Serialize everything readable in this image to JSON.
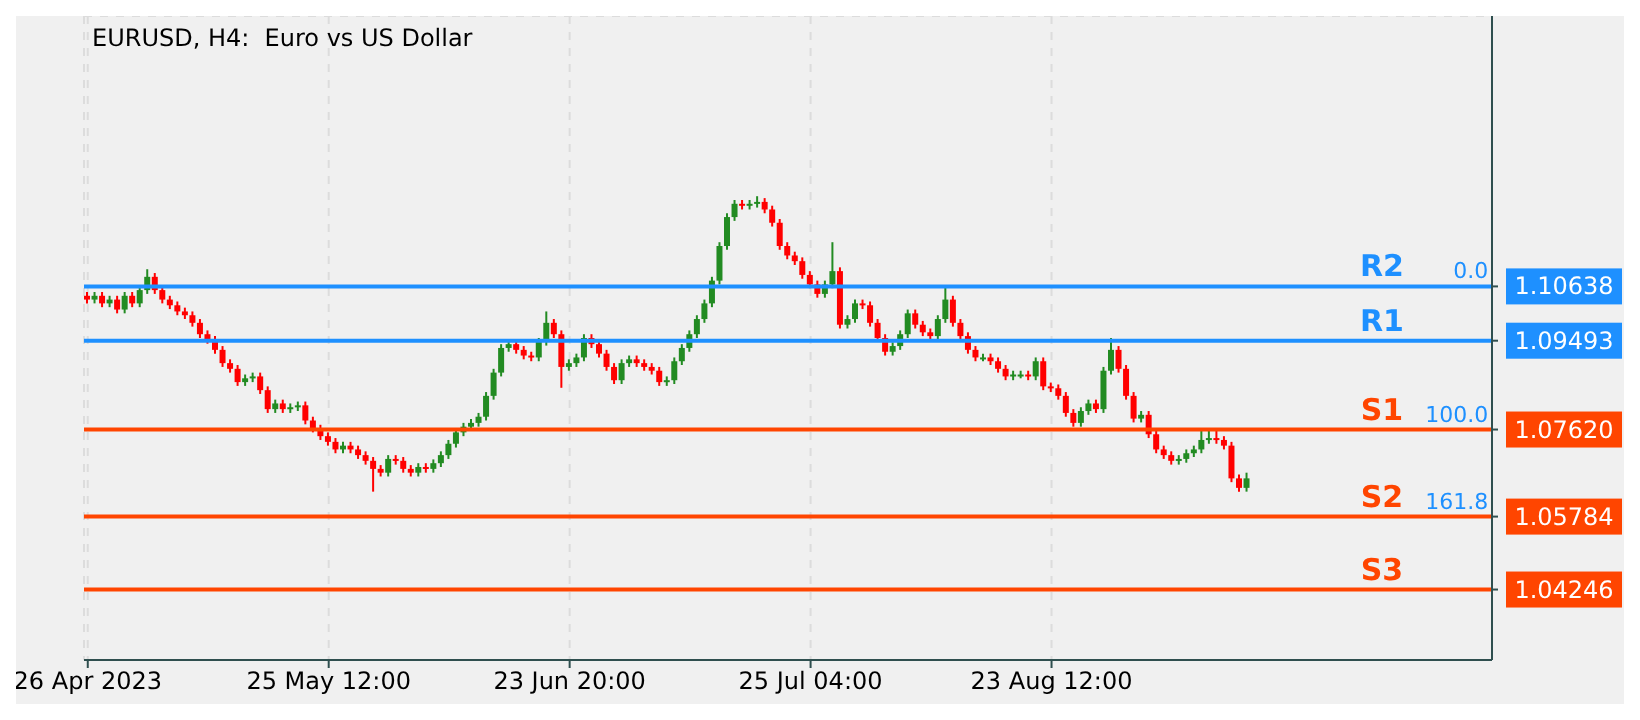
{
  "chart_data": {
    "type": "candlestick",
    "title": "EURUSD, H4:  Euro vs US Dollar",
    "categories": [
      "26 Apr 2023",
      null,
      null,
      null,
      null,
      null,
      null,
      null,
      null,
      null,
      null,
      null,
      null,
      null,
      null,
      null,
      null,
      null,
      null,
      null,
      null,
      null,
      null,
      null,
      null,
      null,
      null,
      null,
      null,
      null,
      null,
      null,
      "25 May 12:00",
      null,
      null,
      null,
      null,
      null,
      null,
      null,
      null,
      null,
      null,
      null,
      null,
      null,
      null,
      null,
      null,
      null,
      null,
      null,
      null,
      null,
      null,
      null,
      null,
      null,
      null,
      null,
      null,
      null,
      null,
      null,
      "23 Jun 20:00",
      null,
      null,
      null,
      null,
      null,
      null,
      null,
      null,
      null,
      null,
      null,
      null,
      null,
      null,
      null,
      null,
      null,
      null,
      null,
      null,
      null,
      null,
      null,
      null,
      null,
      null,
      null,
      null,
      null,
      null,
      null,
      "25 Jul 04:00",
      null,
      null,
      null,
      null,
      null,
      null,
      null,
      null,
      null,
      null,
      null,
      null,
      null,
      null,
      null,
      null,
      null,
      null,
      null,
      null,
      null,
      null,
      null,
      null,
      null,
      null,
      null,
      null,
      null,
      null,
      null,
      "23 Aug 12:00",
      null,
      null,
      null,
      null,
      null,
      null,
      null,
      null,
      null,
      null,
      null,
      null,
      null,
      null,
      null,
      null,
      null,
      null,
      null,
      null,
      null,
      null,
      null,
      null,
      null,
      null,
      null,
      null,
      null,
      null,
      null,
      null,
      null,
      null,
      null,
      null,
      null,
      null,
      null,
      null,
      null,
      null,
      null,
      null,
      null,
      null,
      null,
      null,
      null,
      null,
      null,
      null,
      null,
      null,
      null,
      null,
      null,
      null
    ],
    "ohlc": [
      [
        1.1044,
        1.1052,
        1.1028,
        1.1036
      ],
      [
        1.1036,
        1.1052,
        1.1028,
        1.1044
      ],
      [
        1.1044,
        1.1052,
        1.102,
        1.1028
      ],
      [
        1.1028,
        1.1044,
        1.102,
        1.1036
      ],
      [
        1.1036,
        1.1044,
        1.1007,
        1.1015
      ],
      [
        1.1015,
        1.1052,
        1.1007,
        1.1044
      ],
      [
        1.1044,
        1.1052,
        1.102,
        1.1028
      ],
      [
        1.1028,
        1.1064,
        1.102,
        1.1056
      ],
      [
        1.1056,
        1.11,
        1.1048,
        1.1084
      ],
      [
        1.1084,
        1.1092,
        1.1048,
        1.1056
      ],
      [
        1.1056,
        1.1064,
        1.1028,
        1.1036
      ],
      [
        1.1036,
        1.1044,
        1.1016,
        1.1024
      ],
      [
        1.1024,
        1.1032,
        1.1003,
        1.1011
      ],
      [
        1.1011,
        1.1019,
        1.0995,
        1.1003
      ],
      [
        1.1003,
        1.1011,
        1.0979,
        1.0987
      ],
      [
        1.0987,
        1.0995,
        1.0955,
        1.0963
      ],
      [
        1.0963,
        1.0971,
        1.0943,
        1.0951
      ],
      [
        1.0951,
        1.0959,
        1.0922,
        1.093
      ],
      [
        1.093,
        1.0938,
        1.0894,
        1.0902
      ],
      [
        1.0902,
        1.091,
        1.0882,
        1.089
      ],
      [
        1.089,
        1.0898,
        1.0854,
        1.0862
      ],
      [
        1.0862,
        1.0878,
        1.0854,
        1.087
      ],
      [
        1.087,
        1.0882,
        1.0862,
        1.0874
      ],
      [
        1.0874,
        1.0882,
        1.0837,
        1.0845
      ],
      [
        1.0845,
        1.0853,
        1.0797,
        1.0805
      ],
      [
        1.0805,
        1.0825,
        1.0797,
        1.0817
      ],
      [
        1.0817,
        1.0825,
        1.0797,
        1.0805
      ],
      [
        1.0805,
        1.0817,
        1.0797,
        1.0809
      ],
      [
        1.0809,
        1.0821,
        1.0801,
        1.0813
      ],
      [
        1.0813,
        1.0821,
        1.0773,
        1.0781
      ],
      [
        1.0781,
        1.0789,
        1.0756,
        1.0764
      ],
      [
        1.0764,
        1.0772,
        1.074,
        1.0748
      ],
      [
        1.0748,
        1.0756,
        1.0728,
        1.0736
      ],
      [
        1.0736,
        1.0744,
        1.0712,
        1.072
      ],
      [
        1.072,
        1.0736,
        1.0712,
        1.0728
      ],
      [
        1.0728,
        1.0736,
        1.0712,
        1.072
      ],
      [
        1.072,
        1.0728,
        1.07,
        1.0708
      ],
      [
        1.0708,
        1.0716,
        1.0688,
        1.0696
      ],
      [
        1.0696,
        1.0704,
        1.0631,
        1.0679
      ],
      [
        1.0679,
        1.0687,
        1.0663,
        1.0671
      ],
      [
        1.0671,
        1.0708,
        1.0663,
        1.07
      ],
      [
        1.07,
        1.0708,
        1.0688,
        1.0696
      ],
      [
        1.0696,
        1.0704,
        1.0671,
        1.0679
      ],
      [
        1.0679,
        1.0687,
        1.0663,
        1.0671
      ],
      [
        1.0671,
        1.0691,
        1.0663,
        1.0683
      ],
      [
        1.0683,
        1.0691,
        1.0671,
        1.0679
      ],
      [
        1.0679,
        1.0699,
        1.0671,
        1.0691
      ],
      [
        1.0691,
        1.0716,
        1.0683,
        1.0708
      ],
      [
        1.0708,
        1.074,
        1.07,
        1.0732
      ],
      [
        1.0732,
        1.0764,
        1.0724,
        1.0756
      ],
      [
        1.0756,
        1.0776,
        1.0748,
        1.0768
      ],
      [
        1.0768,
        1.0784,
        1.076,
        1.0776
      ],
      [
        1.0776,
        1.0797,
        1.0768,
        1.0789
      ],
      [
        1.0789,
        1.0841,
        1.0781,
        1.0833
      ],
      [
        1.0833,
        1.089,
        1.0825,
        1.0882
      ],
      [
        1.0882,
        1.0942,
        1.0874,
        1.0934
      ],
      [
        1.0934,
        1.095,
        1.0926,
        1.0942
      ],
      [
        1.0942,
        1.095,
        1.0922,
        1.093
      ],
      [
        1.093,
        1.0938,
        1.091,
        1.0918
      ],
      [
        1.0918,
        1.0926,
        1.0906,
        1.0914
      ],
      [
        1.0914,
        1.0955,
        1.0906,
        1.0947
      ],
      [
        1.0947,
        1.1011,
        1.0939,
        1.0987
      ],
      [
        1.0987,
        1.0995,
        1.0955,
        1.0963
      ],
      [
        1.0963,
        1.0971,
        1.085,
        1.0894
      ],
      [
        1.0894,
        1.091,
        1.0886,
        1.0902
      ],
      [
        1.0902,
        1.0922,
        1.0894,
        1.0914
      ],
      [
        1.0914,
        1.0963,
        1.0906,
        1.0955
      ],
      [
        1.0955,
        1.0963,
        1.0934,
        1.0942
      ],
      [
        1.0942,
        1.095,
        1.0914,
        1.0922
      ],
      [
        1.0922,
        1.093,
        1.0886,
        1.0894
      ],
      [
        1.0894,
        1.0902,
        1.0858,
        1.0866
      ],
      [
        1.0866,
        1.091,
        1.0858,
        1.0902
      ],
      [
        1.0902,
        1.0918,
        1.0894,
        1.091
      ],
      [
        1.091,
        1.0918,
        1.0894,
        1.0902
      ],
      [
        1.0902,
        1.091,
        1.0886,
        1.0894
      ],
      [
        1.0894,
        1.0902,
        1.0878,
        1.0886
      ],
      [
        1.0886,
        1.0894,
        1.0854,
        1.0862
      ],
      [
        1.0862,
        1.0874,
        1.0854,
        1.0866
      ],
      [
        1.0866,
        1.0914,
        1.0858,
        1.0906
      ],
      [
        1.0906,
        1.0942,
        1.0898,
        1.0934
      ],
      [
        1.0934,
        1.0971,
        1.0926,
        1.0963
      ],
      [
        1.0963,
        1.1003,
        1.0955,
        1.0995
      ],
      [
        1.0995,
        1.1036,
        1.0987,
        1.1028
      ],
      [
        1.1028,
        1.1084,
        1.102,
        1.1076
      ],
      [
        1.1076,
        1.1157,
        1.1068,
        1.1149
      ],
      [
        1.1149,
        1.1218,
        1.1141,
        1.121
      ],
      [
        1.121,
        1.1246,
        1.1202,
        1.1238
      ],
      [
        1.1238,
        1.1246,
        1.1226,
        1.1234
      ],
      [
        1.1234,
        1.1246,
        1.1226,
        1.1238
      ],
      [
        1.1238,
        1.1254,
        1.123,
        1.1242
      ],
      [
        1.1242,
        1.125,
        1.1218,
        1.1226
      ],
      [
        1.1226,
        1.1234,
        1.119,
        1.1198
      ],
      [
        1.1198,
        1.1206,
        1.1141,
        1.1149
      ],
      [
        1.1149,
        1.1157,
        1.1121,
        1.1129
      ],
      [
        1.1129,
        1.1137,
        1.1109,
        1.1117
      ],
      [
        1.1117,
        1.1125,
        1.108,
        1.1088
      ],
      [
        1.1088,
        1.1096,
        1.106,
        1.1068
      ],
      [
        1.1068,
        1.1076,
        1.104,
        1.1048
      ],
      [
        1.1048,
        1.1076,
        1.104,
        1.1068
      ],
      [
        1.1068,
        1.1157,
        1.106,
        1.1096
      ],
      [
        1.1096,
        1.1104,
        1.0975,
        1.0983
      ],
      [
        1.0983,
        1.1003,
        1.0975,
        1.0995
      ],
      [
        1.0995,
        1.1036,
        1.0987,
        1.1028
      ],
      [
        1.1028,
        1.1036,
        1.1016,
        1.1024
      ],
      [
        1.1024,
        1.1032,
        1.0979,
        1.0987
      ],
      [
        1.0987,
        1.0995,
        1.0947,
        1.0955
      ],
      [
        1.0955,
        1.0963,
        1.0918,
        1.0926
      ],
      [
        1.0926,
        1.0946,
        1.0918,
        1.0938
      ],
      [
        1.0938,
        1.0971,
        1.093,
        1.0963
      ],
      [
        1.0963,
        1.1015,
        1.0955,
        1.1007
      ],
      [
        1.1007,
        1.1015,
        1.0975,
        1.0983
      ],
      [
        1.0983,
        1.0991,
        1.0959,
        1.0967
      ],
      [
        1.0967,
        1.0975,
        1.0951,
        1.0959
      ],
      [
        1.0959,
        1.1003,
        1.0951,
        1.0995
      ],
      [
        1.0995,
        1.1064,
        1.0987,
        1.1036
      ],
      [
        1.1036,
        1.1044,
        1.0979,
        1.0987
      ],
      [
        1.0987,
        1.0995,
        1.0951,
        1.0959
      ],
      [
        1.0959,
        1.0967,
        1.0922,
        1.093
      ],
      [
        1.093,
        1.0938,
        1.0906,
        1.0914
      ],
      [
        1.0914,
        1.0922,
        1.0906,
        1.0914
      ],
      [
        1.0914,
        1.0922,
        1.0898,
        1.0906
      ],
      [
        1.0906,
        1.0914,
        1.0882,
        1.089
      ],
      [
        1.089,
        1.0898,
        1.0866,
        1.0874
      ],
      [
        1.0874,
        1.0886,
        1.0866,
        1.0878
      ],
      [
        1.0878,
        1.0886,
        1.087,
        1.0878
      ],
      [
        1.0878,
        1.0886,
        1.0866,
        1.0874
      ],
      [
        1.0874,
        1.0914,
        1.0866,
        1.0906
      ],
      [
        1.0906,
        1.0914,
        1.0845,
        1.0853
      ],
      [
        1.0853,
        1.0861,
        1.0841,
        1.0849
      ],
      [
        1.0849,
        1.0857,
        1.0825,
        1.0833
      ],
      [
        1.0833,
        1.0841,
        1.0789,
        1.0797
      ],
      [
        1.0797,
        1.0805,
        1.0768,
        1.0776
      ],
      [
        1.0776,
        1.0809,
        1.0768,
        1.0801
      ],
      [
        1.0801,
        1.0825,
        1.0793,
        1.0817
      ],
      [
        1.0817,
        1.0825,
        1.0797,
        1.0805
      ],
      [
        1.0805,
        1.0894,
        1.0797,
        1.0886
      ],
      [
        1.0886,
        1.0955,
        1.0878,
        1.093
      ],
      [
        1.093,
        1.0938,
        1.0882,
        1.089
      ],
      [
        1.089,
        1.0898,
        1.0825,
        1.0833
      ],
      [
        1.0833,
        1.0841,
        1.0777,
        1.0785
      ],
      [
        1.0785,
        1.0801,
        1.0777,
        1.0793
      ],
      [
        1.0793,
        1.0801,
        1.0744,
        1.0752
      ],
      [
        1.0752,
        1.076,
        1.0712,
        1.072
      ],
      [
        1.072,
        1.0728,
        1.07,
        1.0708
      ],
      [
        1.0708,
        1.0716,
        1.0688,
        1.0696
      ],
      [
        1.0696,
        1.0708,
        1.0688,
        1.07
      ],
      [
        1.07,
        1.072,
        1.0692,
        1.0712
      ],
      [
        1.0712,
        1.0728,
        1.0704,
        1.072
      ],
      [
        1.072,
        1.0762,
        1.0712,
        1.074
      ],
      [
        1.074,
        1.0762,
        1.0732,
        1.0744
      ],
      [
        1.0744,
        1.0762,
        1.0732,
        1.074
      ],
      [
        1.074,
        1.0748,
        1.072,
        1.0728
      ],
      [
        1.0728,
        1.0736,
        1.0651,
        1.0659
      ],
      [
        1.0659,
        1.0667,
        1.0631,
        1.0639
      ],
      [
        1.0639,
        1.0671,
        1.0631,
        1.0659
      ],
      null,
      null,
      null,
      null,
      null,
      null,
      null,
      null,
      null,
      null,
      null,
      null,
      null,
      null,
      null,
      null,
      null,
      null,
      null,
      null,
      null,
      null,
      null,
      null,
      null,
      null,
      null,
      null,
      null,
      null,
      null,
      null
    ],
    "colors": [
      "#ff0000",
      "#228b22",
      "#ff0000",
      "#228b22",
      "#ff0000",
      "#228b22",
      "#ff0000",
      "#228b22",
      "#228b22",
      "#ff0000",
      "#ff0000",
      "#ff0000",
      "#ff0000",
      "#ff0000",
      "#ff0000",
      "#ff0000",
      "#ff0000",
      "#ff0000",
      "#ff0000",
      "#ff0000",
      "#ff0000",
      "#228b22",
      "#228b22",
      "#ff0000",
      "#ff0000",
      "#228b22",
      "#ff0000",
      "#228b22",
      "#228b22",
      "#ff0000",
      "#ff0000",
      "#ff0000",
      "#ff0000",
      "#ff0000",
      "#228b22",
      "#ff0000",
      "#ff0000",
      "#ff0000",
      "#ff0000",
      "#ff0000",
      "#228b22",
      "#ff0000",
      "#ff0000",
      "#ff0000",
      "#228b22",
      "#ff0000",
      "#228b22",
      "#228b22",
      "#228b22",
      "#228b22",
      "#228b22",
      "#228b22",
      "#228b22",
      "#228b22",
      "#228b22",
      "#228b22",
      "#228b22",
      "#ff0000",
      "#ff0000",
      "#ff0000",
      "#228b22",
      "#228b22",
      "#ff0000",
      "#ff0000",
      "#228b22",
      "#228b22",
      "#228b22",
      "#ff0000",
      "#ff0000",
      "#ff0000",
      "#ff0000",
      "#228b22",
      "#228b22",
      "#ff0000",
      "#ff0000",
      "#ff0000",
      "#ff0000",
      "#228b22",
      "#228b22",
      "#228b22",
      "#228b22",
      "#228b22",
      "#228b22",
      "#228b22",
      "#228b22",
      "#228b22",
      "#228b22",
      "#ff0000",
      "#228b22",
      "#228b22",
      "#ff0000",
      "#ff0000",
      "#ff0000",
      "#ff0000",
      "#ff0000",
      "#ff0000",
      "#ff0000",
      "#ff0000",
      "#228b22",
      "#228b22",
      "#ff0000",
      "#228b22",
      "#228b22",
      "#ff0000",
      "#ff0000",
      "#ff0000",
      "#ff0000",
      "#228b22",
      "#228b22",
      "#228b22",
      "#ff0000",
      "#ff0000",
      "#ff0000",
      "#228b22",
      "#228b22",
      "#ff0000",
      "#ff0000",
      "#ff0000",
      "#ff0000",
      "#228b22",
      "#ff0000",
      "#ff0000",
      "#ff0000",
      "#228b22",
      "#228b22",
      "#ff0000",
      "#228b22",
      "#ff0000",
      "#ff0000",
      "#ff0000",
      "#ff0000",
      "#ff0000",
      "#228b22",
      "#228b22",
      "#ff0000",
      "#228b22",
      "#228b22",
      "#ff0000",
      "#ff0000",
      "#ff0000",
      "#228b22",
      "#ff0000",
      "#ff0000",
      "#ff0000",
      "#ff0000",
      "#228b22",
      "#228b22",
      "#228b22",
      "#228b22",
      "#228b22",
      "#ff0000",
      "#ff0000",
      "#ff0000",
      "#ff0000",
      "#228b22",
      null,
      null,
      null,
      null,
      null,
      null,
      null,
      null,
      null,
      null,
      null,
      null,
      null,
      null,
      null,
      null,
      null,
      null,
      null,
      null,
      null,
      null,
      null,
      null,
      null,
      null,
      null,
      null,
      null,
      null,
      null,
      null
    ],
    "ylim": [
      1.0276,
      1.1634
    ],
    "yticks": [
      1.04246,
      1.05784,
      {
        "value": 1.0762,
        "label": "1.07620"
      },
      1.09493,
      1.10638
    ],
    "ref_lines": [
      {
        "axis": "y",
        "value": 1.10638,
        "label": "R2",
        "color": "#1e90ff"
      },
      {
        "axis": "y",
        "value": 1.09493,
        "label": "R1",
        "color": "#1e90ff"
      },
      {
        "axis": "y",
        "value": 1.0762,
        "label": "S1",
        "color": "#ff4500"
      },
      {
        "axis": "y",
        "value": 1.05784,
        "label": "S2",
        "color": "#ff4500"
      },
      {
        "axis": "y",
        "value": 1.04246,
        "label": "S3",
        "color": "#ff4500"
      }
    ],
    "annotations": [
      {
        "text": "0.0",
        "y": 1.10638
      },
      {
        "text": "100.0",
        "y": 1.0762
      },
      {
        "text": "161.8",
        "y": 1.05784
      }
    ],
    "grid": true
  }
}
